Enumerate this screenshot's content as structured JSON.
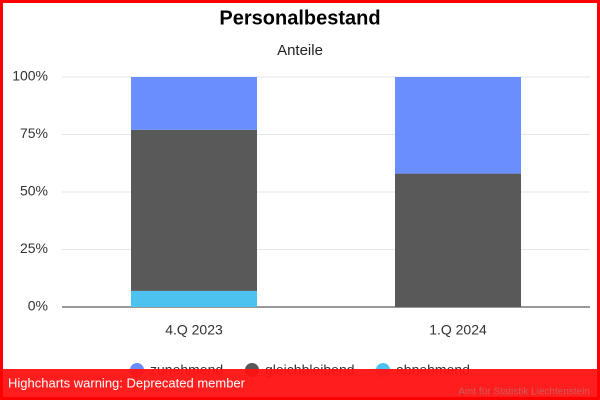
{
  "chart_data": {
    "type": "stacked_bar",
    "title": "Personalbestand",
    "subtitle": "Anteile",
    "categories": [
      "4.Q 2023",
      "1.Q 2024"
    ],
    "series": [
      {
        "name": "zunehmend",
        "color": "#6b8eff",
        "values": [
          23,
          42
        ]
      },
      {
        "name": "gleichbleibend",
        "color": "#595959",
        "values": [
          70,
          58
        ]
      },
      {
        "name": "abnehmend",
        "color": "#4cc2f1",
        "values": [
          7,
          0
        ]
      }
    ],
    "ylim": [
      0,
      100
    ],
    "yticks": [
      {
        "value": 0,
        "label": "0%"
      },
      {
        "value": 25,
        "label": "25%"
      },
      {
        "value": 50,
        "label": "50%"
      },
      {
        "value": 75,
        "label": "75%"
      },
      {
        "value": 100,
        "label": "100%"
      }
    ],
    "grid": true,
    "legend": "bottom",
    "warning": "Highcharts warning: Deprecated member",
    "credits": "Amt für Statistik Liechtenstein"
  }
}
